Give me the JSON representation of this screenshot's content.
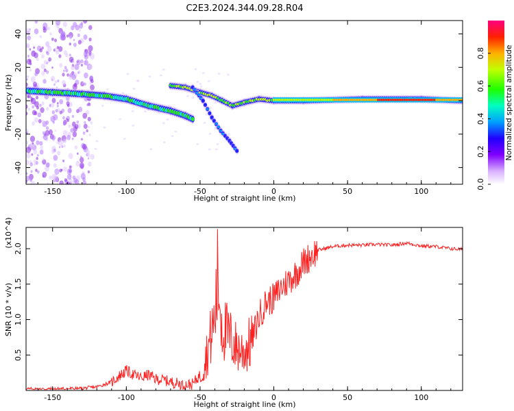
{
  "title": "C2E3.2024.344.09.28.R04",
  "chart_data": [
    {
      "type": "heatmap",
      "xlabel": "Height of straight line (km)",
      "ylabel": "Frequency (Hz)",
      "xlim": [
        -168,
        128
      ],
      "ylim": [
        -50,
        48
      ],
      "x_ticks": [
        -150,
        -100,
        -50,
        0,
        50,
        100
      ],
      "y_ticks": [
        -40,
        -20,
        0,
        20,
        40
      ],
      "colorbar": {
        "label": "Normalized spectral amplitude",
        "range": [
          0,
          1
        ],
        "ticks": [
          0.0,
          0.2,
          0.4,
          0.6,
          0.8
        ],
        "colors": [
          "#ffffff",
          "#c080ff",
          "#7000ff",
          "#0000ff",
          "#00e0ff",
          "#00ff40",
          "#c0ff00",
          "#ffb000",
          "#ff0000",
          "#ff0080"
        ]
      },
      "ridges": [
        {
          "x": [
            -168,
            -150,
            -130,
            -115,
            -100,
            -85,
            -70,
            -60,
            -55
          ],
          "y": [
            6,
            5,
            4,
            3,
            1,
            -3,
            -6,
            -9,
            -11
          ]
        },
        {
          "x": [
            -70,
            -60,
            -50,
            -42,
            -35,
            -28,
            -20,
            -10,
            0,
            20,
            60,
            100,
            128
          ],
          "y": [
            9,
            8,
            5,
            3,
            0,
            -3,
            -1,
            1,
            0,
            0,
            1,
            1,
            0
          ]
        },
        {
          "x": [
            -55,
            -48,
            -42,
            -36,
            -30,
            -25
          ],
          "y": [
            8,
            0,
            -10,
            -18,
            -24,
            -30
          ]
        }
      ]
    },
    {
      "type": "line",
      "xlabel": "Height of straight line (km)",
      "ylabel": "SNR (10 * v/v)",
      "y_multiplier": "(x10^4)",
      "xlim": [
        -168,
        128
      ],
      "ylim": [
        0,
        2.3
      ],
      "x_ticks": [
        -150,
        -100,
        -50,
        0,
        50,
        100
      ],
      "y_ticks": [
        0.5,
        1.0,
        1.5,
        2.0
      ],
      "color": "#ff2020",
      "series": [
        {
          "x": [
            -168,
            -150,
            -130,
            -120,
            -110,
            -105,
            -100,
            -95,
            -90,
            -85,
            -80,
            -75,
            -70,
            -65,
            -60,
            -55,
            -50,
            -45,
            -40,
            -38,
            -35,
            -30,
            -25,
            -20,
            -15,
            -10,
            -5,
            0,
            5,
            10,
            15,
            20,
            25,
            30,
            40,
            50,
            60,
            70,
            80,
            90,
            100,
            110,
            120,
            128
          ],
          "y": [
            0.02,
            0.02,
            0.03,
            0.05,
            0.12,
            0.2,
            0.28,
            0.22,
            0.18,
            0.22,
            0.16,
            0.15,
            0.12,
            0.1,
            0.08,
            0.09,
            0.22,
            0.55,
            1.0,
            1.6,
            0.9,
            0.75,
            0.6,
            0.55,
            0.7,
            1.05,
            1.25,
            1.3,
            1.45,
            1.55,
            1.65,
            1.8,
            1.9,
            1.98,
            2.03,
            2.05,
            2.05,
            2.06,
            2.05,
            2.08,
            2.04,
            2.03,
            2.0,
            1.99
          ]
        }
      ]
    }
  ],
  "top_panel": {
    "y_tick_labels": [
      "-40",
      "-20",
      "0",
      "20",
      "40"
    ],
    "x_tick_labels": [
      "-150",
      "-100",
      "-50",
      "0",
      "50",
      "100"
    ],
    "colorbar_tick_labels": [
      "0.0",
      "0.2",
      "0.4",
      "0.6",
      "0.8"
    ]
  },
  "bottom_panel": {
    "y_tick_labels": [
      "0.5",
      "1.0",
      "1.5",
      "2.0"
    ],
    "x_tick_labels": [
      "-150",
      "-100",
      "-50",
      "0",
      "50",
      "100"
    ]
  }
}
